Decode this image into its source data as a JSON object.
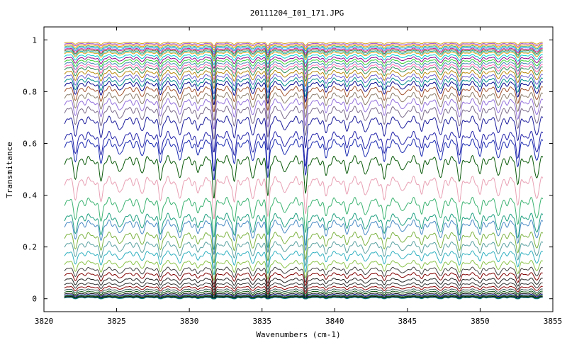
{
  "chart_data": {
    "type": "line",
    "title": "20111204_I01_171.JPG",
    "xlabel": "Wavenumbers (cm-1)",
    "ylabel": "Transmitance",
    "xlim": [
      3820,
      3855
    ],
    "ylim": [
      -0.05,
      1.05
    ],
    "x_ticks": [
      "3820",
      "3825",
      "3830",
      "3835",
      "3840",
      "3845",
      "3850",
      "3855"
    ],
    "y_ticks": [
      "0",
      "0.2",
      "0.4",
      "0.6",
      "0.8",
      "1"
    ],
    "grid": false,
    "legend": "none",
    "x_start": 3821.4,
    "x_end": 3854.3,
    "absorption_lines_cm1": [
      3822.2,
      3823.9,
      3825.2,
      3826.7,
      3828.0,
      3829.3,
      3830.6,
      3831.7,
      3833.1,
      3834.4,
      3835.4,
      3836.6,
      3838.0,
      3839.4,
      3840.8,
      3842.1,
      3843.4,
      3844.7,
      3846.0,
      3847.3,
      3848.6,
      3850.0,
      3851.3,
      3852.6,
      3853.9
    ],
    "strong_lines_cm1": [
      3831.7,
      3835.4,
      3838.0
    ],
    "series": [
      {
        "baseline": 0.99,
        "color": "#d4a017"
      },
      {
        "baseline": 0.985,
        "color": "#9c4fd1"
      },
      {
        "baseline": 0.98,
        "color": "#ff8c00"
      },
      {
        "baseline": 0.975,
        "color": "#3cb371"
      },
      {
        "baseline": 0.97,
        "color": "#1e90ff"
      },
      {
        "baseline": 0.965,
        "color": "#c71585"
      },
      {
        "baseline": 0.96,
        "color": "#556b2f"
      },
      {
        "baseline": 0.955,
        "color": "#20b2aa"
      },
      {
        "baseline": 0.95,
        "color": "#daa520"
      },
      {
        "baseline": 0.94,
        "color": "#00ced1"
      },
      {
        "baseline": 0.93,
        "color": "#8b008b"
      },
      {
        "baseline": 0.92,
        "color": "#32cd32"
      },
      {
        "baseline": 0.91,
        "color": "#4682b4"
      },
      {
        "baseline": 0.9,
        "color": "#ff69b4"
      },
      {
        "baseline": 0.89,
        "color": "#2e8b57"
      },
      {
        "baseline": 0.875,
        "color": "#b8860b"
      },
      {
        "baseline": 0.86,
        "color": "#6a5acd"
      },
      {
        "baseline": 0.845,
        "color": "#008b8b"
      },
      {
        "baseline": 0.83,
        "color": "#00008b"
      },
      {
        "baseline": 0.81,
        "color": "#a0522d"
      },
      {
        "baseline": 0.785,
        "color": "#8b7d6b"
      },
      {
        "baseline": 0.76,
        "color": "#9370db"
      },
      {
        "baseline": 0.73,
        "color": "#7b6b8b"
      },
      {
        "baseline": 0.69,
        "color": "#1c1c9c"
      },
      {
        "baseline": 0.63,
        "color": "#2222aa"
      },
      {
        "baseline": 0.6,
        "color": "#1a2ab0"
      },
      {
        "baseline": 0.535,
        "color": "#0a5a0a"
      },
      {
        "baseline": 0.455,
        "color": "#e8a0b4"
      },
      {
        "baseline": 0.375,
        "color": "#3cb371"
      },
      {
        "baseline": 0.315,
        "color": "#20a080"
      },
      {
        "baseline": 0.29,
        "color": "#4a8bc4"
      },
      {
        "baseline": 0.245,
        "color": "#7cb342"
      },
      {
        "baseline": 0.21,
        "color": "#5aa0a0"
      },
      {
        "baseline": 0.175,
        "color": "#30b0c0"
      },
      {
        "baseline": 0.14,
        "color": "#8bc34a"
      },
      {
        "baseline": 0.115,
        "color": "#404040"
      },
      {
        "baseline": 0.095,
        "color": "#800000"
      },
      {
        "baseline": 0.075,
        "color": "#222222"
      },
      {
        "baseline": 0.058,
        "color": "#333333"
      },
      {
        "baseline": 0.045,
        "color": "#8b0000"
      },
      {
        "baseline": 0.035,
        "color": "#2f4f4f"
      },
      {
        "baseline": 0.027,
        "color": "#004d00"
      },
      {
        "baseline": 0.02,
        "color": "#1a1a1a"
      },
      {
        "baseline": 0.015,
        "color": "#00008b"
      },
      {
        "baseline": 0.011,
        "color": "#006400"
      },
      {
        "baseline": 0.008,
        "color": "#000000"
      },
      {
        "baseline": 0.006,
        "color": "#444444"
      },
      {
        "baseline": 0.004,
        "color": "#008080"
      }
    ]
  }
}
